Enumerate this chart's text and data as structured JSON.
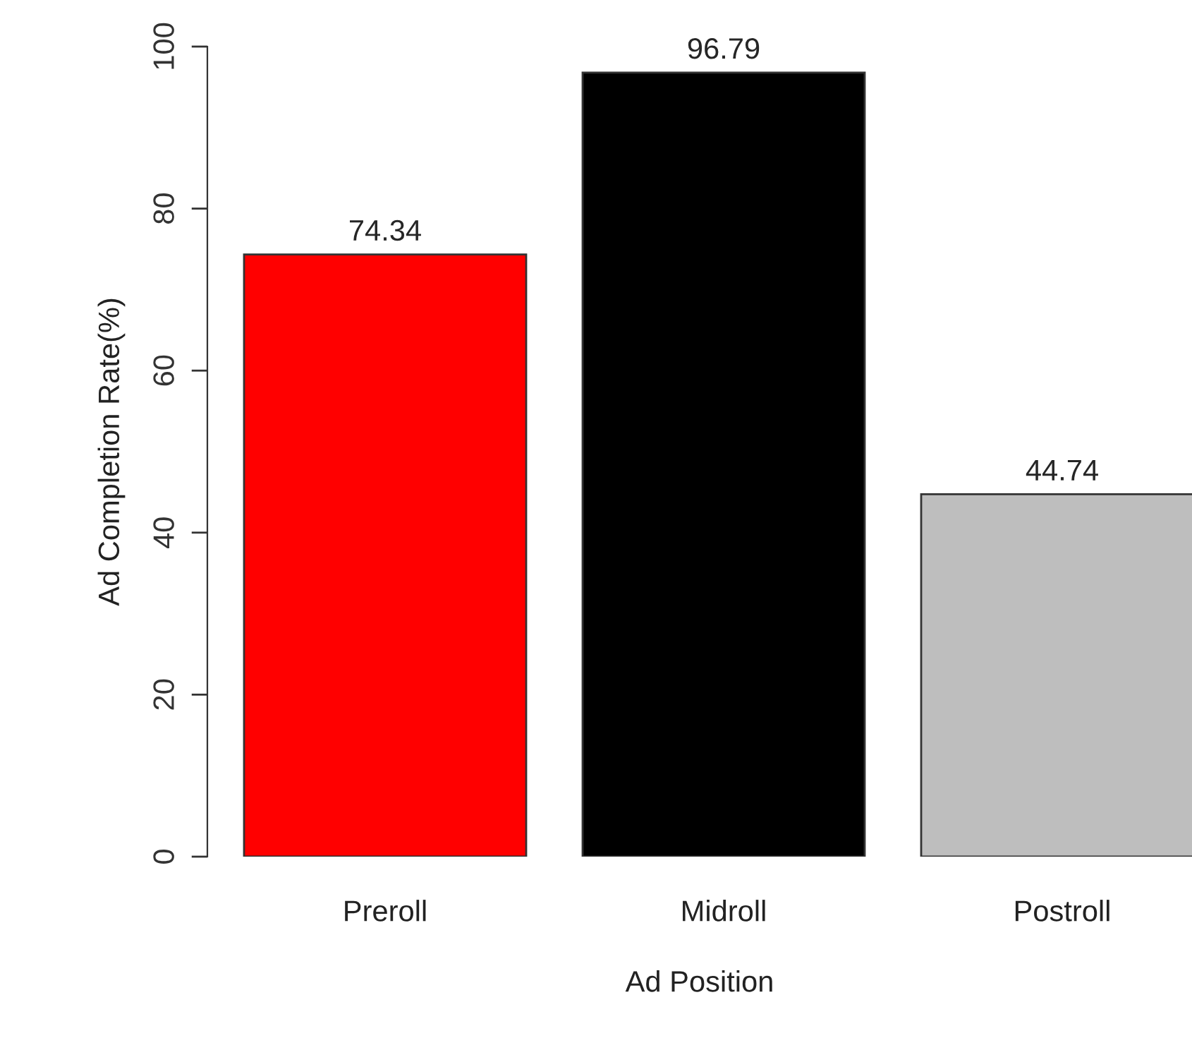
{
  "chart_data": {
    "type": "bar",
    "xlabel": "Ad Position",
    "ylabel": "Ad Completion Rate(%)",
    "categories": [
      "Preroll",
      "Midroll",
      "Postroll"
    ],
    "values": [
      74.34,
      96.79,
      44.74
    ],
    "colors": [
      "#ff0000",
      "#000000",
      "#bebebe"
    ],
    "ylim": [
      0,
      100
    ],
    "yticks": [
      0,
      20,
      40,
      60,
      80,
      100
    ],
    "data_labels": true,
    "grid": false,
    "legend": false
  }
}
